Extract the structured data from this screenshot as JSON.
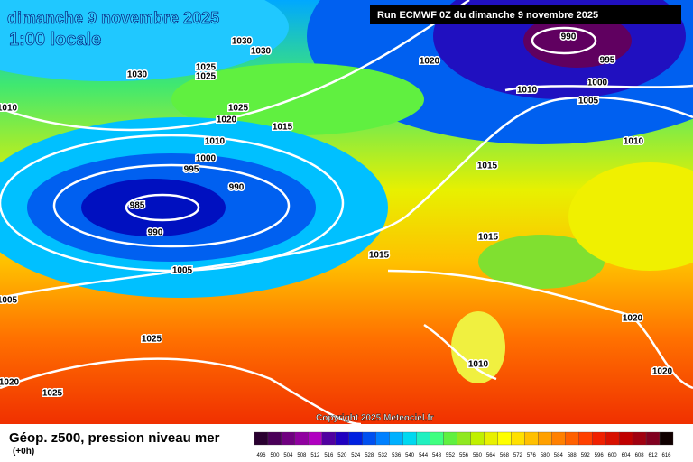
{
  "map_title": "dimanche 9 novembre 2025",
  "map_time": "1:00 locale",
  "run_info": "Run ECMWF 0Z du dimanche 9 novembre 2025",
  "copyright": "Copyright 2025 Meteociel.fr",
  "legend_title": "Géop. z500, pression niveau mer",
  "legend_step": "(+0h)",
  "isobar_labels": [
    1030,
    1030,
    1030,
    1025,
    1025,
    1020,
    990,
    995,
    1000,
    1010,
    1005,
    1010,
    1025,
    1020,
    1015,
    1010,
    1010,
    1000,
    995,
    1015,
    990,
    985,
    990,
    1015,
    1015,
    1005,
    1005,
    1020,
    1025,
    1010,
    1020,
    1020,
    1025
  ],
  "color_scale": {
    "ticks": [
      496,
      500,
      504,
      508,
      512,
      516,
      520,
      524,
      528,
      532,
      536,
      540,
      544,
      548,
      552,
      556,
      560,
      564,
      568,
      572,
      576,
      580,
      584,
      588,
      592,
      596,
      600,
      604,
      608,
      612,
      616
    ],
    "colors": [
      "#2a0030",
      "#4a0058",
      "#700080",
      "#9000a0",
      "#b000c0",
      "#5000a0",
      "#2000c0",
      "#0020e0",
      "#0050f0",
      "#0080ff",
      "#00b0ff",
      "#00d8f0",
      "#20f0c0",
      "#40ff80",
      "#60f040",
      "#90e820",
      "#c0f000",
      "#e8f000",
      "#ffff00",
      "#ffe000",
      "#ffc000",
      "#ffa000",
      "#ff8000",
      "#ff6000",
      "#ff4000",
      "#f02000",
      "#d81000",
      "#c00000",
      "#a00010",
      "#800020",
      "#100000"
    ]
  }
}
